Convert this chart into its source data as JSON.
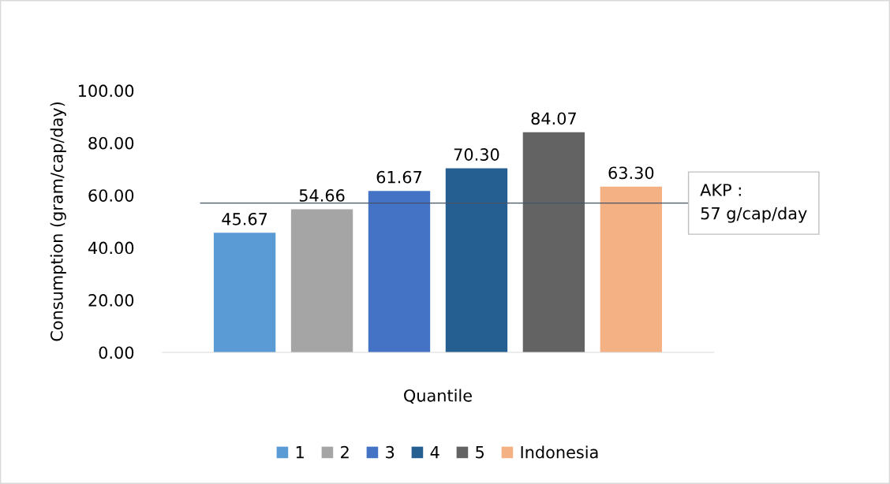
{
  "chart_data": {
    "type": "bar",
    "xlabel": "Quantile",
    "ylabel": "Consumption (gram/cap/day)",
    "categories": [
      null
    ],
    "series": [
      {
        "name": "1",
        "color": "#5b9bd5",
        "values": [
          45.67
        ],
        "value_labels": [
          "45.67"
        ]
      },
      {
        "name": "2",
        "color": "#a5a5a5",
        "values": [
          54.66
        ],
        "value_labels": [
          "54.66"
        ]
      },
      {
        "name": "3",
        "color": "#4472c4",
        "values": [
          61.67
        ],
        "value_labels": [
          "61.67"
        ]
      },
      {
        "name": "4",
        "color": "#255e91",
        "values": [
          70.3
        ],
        "value_labels": [
          "70.30"
        ]
      },
      {
        "name": "5",
        "color": "#636363",
        "values": [
          84.07
        ],
        "value_labels": [
          "84.07"
        ]
      },
      {
        "name": "Indonesia",
        "color": "#f4b183",
        "values": [
          63.3
        ],
        "value_labels": [
          "63.30"
        ]
      }
    ],
    "ylim": [
      0,
      100
    ],
    "yticks": [
      {
        "value": 0,
        "label": "0.00"
      },
      {
        "value": 20,
        "label": "20.00"
      },
      {
        "value": 40,
        "label": "40.00"
      },
      {
        "value": 60,
        "label": "60.00"
      },
      {
        "value": 80,
        "label": "80.00"
      },
      {
        "value": 100,
        "label": "100.00"
      }
    ],
    "ref_lines": [
      {
        "axis": "y",
        "value": 57,
        "label": "AKP :\n57 g/cap/day",
        "color": "#44546a"
      }
    ],
    "grid": false,
    "legend": "bottom"
  }
}
